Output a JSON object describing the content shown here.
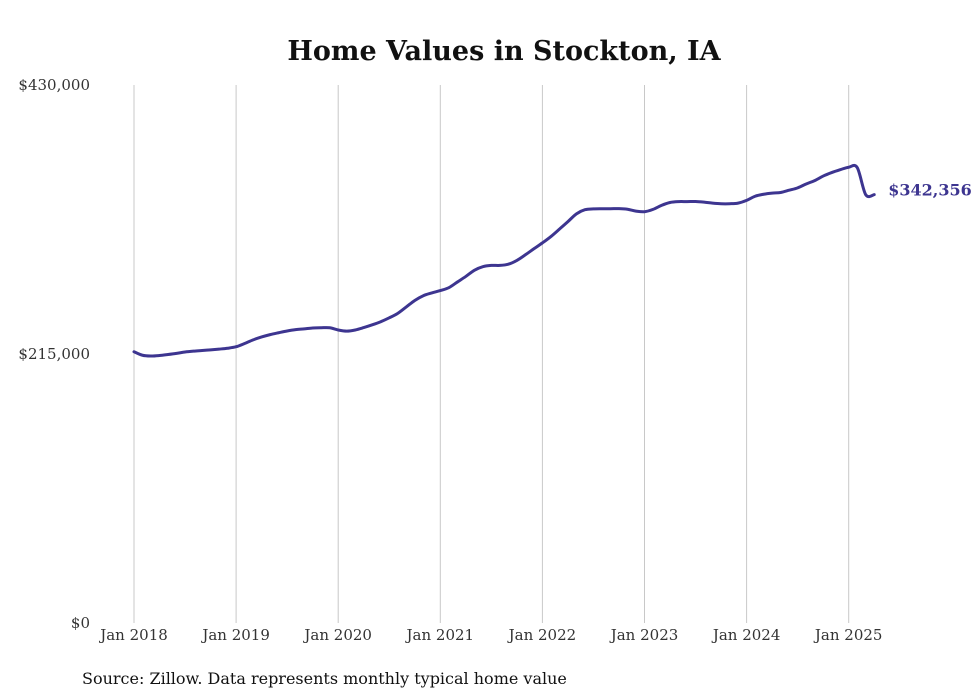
{
  "chart_data": {
    "type": "line",
    "title": "Home Values in Stockton, IA",
    "source_note": "Source: Zillow. Data represents monthly typical home value",
    "xlabel": "",
    "ylabel": "",
    "ylim": [
      0,
      430000
    ],
    "yticks": [
      {
        "value": 0,
        "label": "$0"
      },
      {
        "value": 215000,
        "label": "$215,000"
      },
      {
        "value": 430000,
        "label": "$430,000"
      }
    ],
    "xlim": [
      "2018-01",
      "2025-04"
    ],
    "xticks": [
      "Jan 2018",
      "Jan 2019",
      "Jan 2020",
      "Jan 2021",
      "Jan 2022",
      "Jan 2023",
      "Jan 2024",
      "Jan 2025"
    ],
    "grid": "vertical",
    "line_color": "#3d3590",
    "end_label": "$342,356",
    "series": [
      {
        "x": [
          "2018-01",
          "2018-02",
          "2018-03",
          "2018-04",
          "2018-05",
          "2018-06",
          "2018-07",
          "2018-08",
          "2018-09",
          "2018-10",
          "2018-11",
          "2018-12",
          "2019-01",
          "2019-02",
          "2019-03",
          "2019-04",
          "2019-05",
          "2019-06",
          "2019-07",
          "2019-08",
          "2019-09",
          "2019-10",
          "2019-11",
          "2019-12",
          "2020-01",
          "2020-02",
          "2020-03",
          "2020-04",
          "2020-05",
          "2020-06",
          "2020-07",
          "2020-08",
          "2020-09",
          "2020-10",
          "2020-11",
          "2020-12",
          "2021-01",
          "2021-02",
          "2021-03",
          "2021-04",
          "2021-05",
          "2021-06",
          "2021-07",
          "2021-08",
          "2021-09",
          "2021-10",
          "2021-11",
          "2021-12",
          "2022-01",
          "2022-02",
          "2022-03",
          "2022-04",
          "2022-05",
          "2022-06",
          "2022-07",
          "2022-08",
          "2022-09",
          "2022-10",
          "2022-11",
          "2022-12",
          "2023-01",
          "2023-02",
          "2023-03",
          "2023-04",
          "2023-05",
          "2023-06",
          "2023-07",
          "2023-08",
          "2023-09",
          "2023-10",
          "2023-11",
          "2023-12",
          "2024-01",
          "2024-02",
          "2024-03",
          "2024-04",
          "2024-05",
          "2024-06",
          "2024-07",
          "2024-08",
          "2024-09",
          "2024-10",
          "2024-11",
          "2024-12",
          "2025-01",
          "2025-02",
          "2025-03",
          "2025-04"
        ],
        "values": [
          216800,
          214000,
          213400,
          213800,
          214600,
          215500,
          216600,
          217300,
          217800,
          218300,
          218900,
          219600,
          220800,
          223400,
          226300,
          228600,
          230500,
          232000,
          233400,
          234500,
          235100,
          235800,
          236000,
          236000,
          234200,
          233300,
          234200,
          236100,
          238300,
          240800,
          243900,
          247500,
          252600,
          257800,
          261600,
          263800,
          265700,
          268000,
          272500,
          277000,
          281900,
          284800,
          285800,
          285800,
          286800,
          289800,
          294300,
          299100,
          303800,
          308900,
          314800,
          320800,
          327000,
          330300,
          331000,
          331100,
          331100,
          331200,
          330700,
          329200,
          328700,
          330600,
          333800,
          336100,
          336800,
          336800,
          336900,
          336400,
          335600,
          335100,
          335100,
          335600,
          337800,
          341100,
          342700,
          343600,
          344100,
          345900,
          347800,
          350900,
          353600,
          357200,
          360000,
          362300,
          364300,
          364000,
          342356,
          342356
        ]
      }
    ]
  }
}
